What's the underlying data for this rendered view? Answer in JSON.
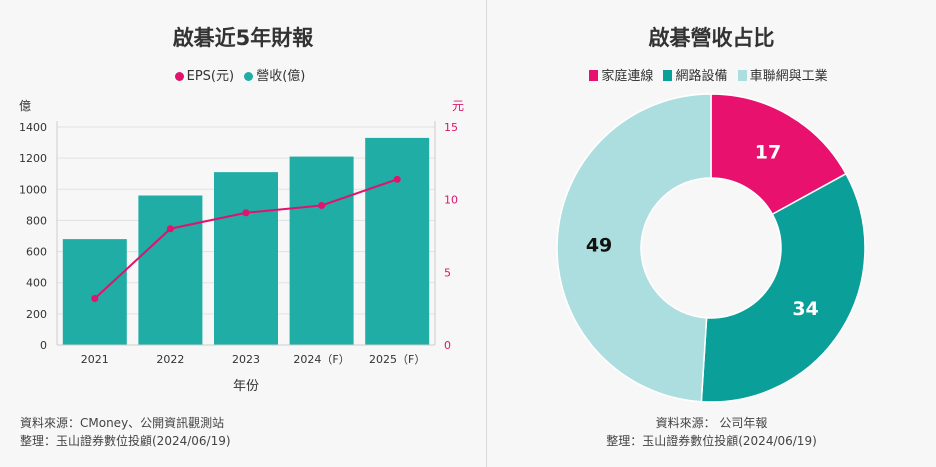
{
  "colors": {
    "bar": "#1fada5",
    "eps": "#e0136d",
    "pink": "#e8116d",
    "teal": "#0a9f98",
    "light": "#addedf",
    "axis_right": "#e0136d"
  },
  "left": {
    "title": "啟碁近5年財報",
    "legend": [
      {
        "label": "EPS(元)",
        "color": "#e0136d"
      },
      {
        "label": "營收(億)",
        "color": "#1fada5"
      }
    ],
    "source_line1": "資料來源：CMoney、公開資訊觀測站",
    "source_line2": "整理：玉山證券數位投顧(2024/06/19)"
  },
  "right": {
    "title": "啟碁營收占比",
    "legend": [
      {
        "label": "家庭連線",
        "color": "#e8116d"
      },
      {
        "label": "網路設備",
        "color": "#0a9f98"
      },
      {
        "label": "車聯網與工業",
        "color": "#addedf"
      }
    ],
    "source_line1": "資料來源： 公司年報",
    "source_line2": "整理：玉山證券數位投顧(2024/06/19)"
  },
  "chart_data": [
    {
      "type": "bar",
      "title": "啟碁近5年財報",
      "categories": [
        "2021",
        "2022",
        "2023",
        "2024（F）",
        "2025（F）"
      ],
      "xlabel": "年份",
      "ylabel": "億",
      "ylabel_right": "元",
      "ylim": [
        0,
        1400
      ],
      "yticks": [
        0,
        200,
        400,
        600,
        800,
        1000,
        1200,
        1400
      ],
      "ylim_right": [
        0,
        15
      ],
      "yticks_right": [
        0,
        5,
        10,
        15
      ],
      "series": [
        {
          "name": "營收(億)",
          "type": "bar",
          "axis": "left",
          "values": [
            680,
            960,
            1110,
            1210,
            1330
          ]
        },
        {
          "name": "EPS(元)",
          "type": "line",
          "axis": "right",
          "values": [
            3.2,
            8.0,
            9.1,
            9.6,
            11.4
          ]
        }
      ],
      "grid": true,
      "legend_position": "top"
    },
    {
      "type": "pie",
      "title": "啟碁營收占比",
      "donut": true,
      "labels": [
        "家庭連線",
        "網路設備",
        "車聯網與工業"
      ],
      "values": [
        17,
        34,
        49
      ],
      "data_labels": [
        "17",
        "34",
        "49"
      ],
      "legend_position": "top"
    }
  ]
}
